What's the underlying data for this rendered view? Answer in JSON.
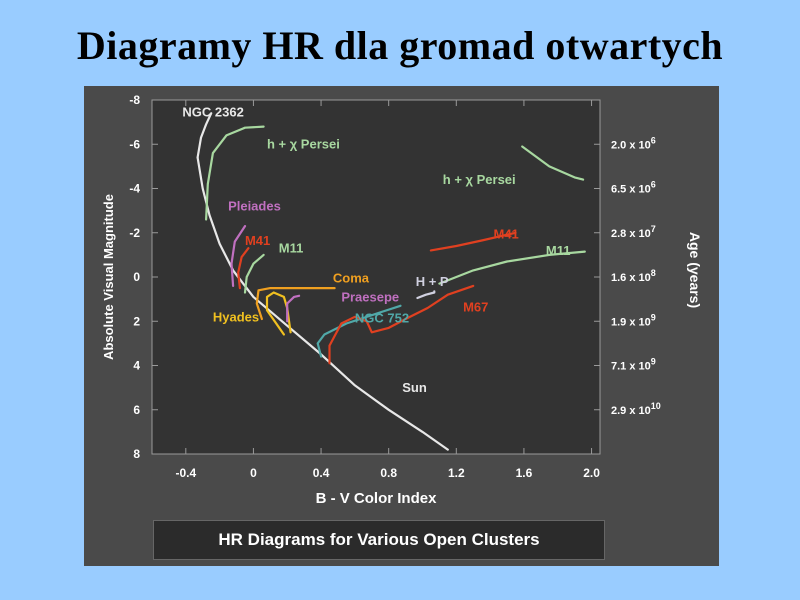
{
  "slide_title": "Diagramy HR dla gromad otwartych",
  "caption": "HR Diagrams for Various Open Clusters",
  "chart_data": {
    "type": "line",
    "title": "HR Diagrams for Various Open Clusters",
    "xlabel": "B - V Color Index",
    "ylabel": "Absolute Visual Magnitude",
    "y2label": "Age (years)",
    "xlim": [
      -0.6,
      2.05
    ],
    "ylim": [
      8,
      -8
    ],
    "x_ticks": [
      "-0.4",
      "0",
      "0.4",
      "0.8",
      "1.2",
      "1.6",
      "2.0"
    ],
    "x_tick_values": [
      -0.4,
      0,
      0.4,
      0.8,
      1.2,
      1.6,
      2.0
    ],
    "y_ticks": [
      "-8",
      "-6",
      "-4",
      "-2",
      "0",
      "2",
      "4",
      "6",
      "8"
    ],
    "y_tick_values": [
      -8,
      -6,
      -4,
      -2,
      0,
      2,
      4,
      6,
      8
    ],
    "age_ticks": [
      {
        "base": "2.0 x 10",
        "exp": "6",
        "mag": -6
      },
      {
        "base": "6.5 x 10",
        "exp": "6",
        "mag": -4
      },
      {
        "base": "2.8 x 10",
        "exp": "7",
        "mag": -2
      },
      {
        "base": "1.6 x 10",
        "exp": "8",
        "mag": 0
      },
      {
        "base": "1.9 x 10",
        "exp": "9",
        "mag": 2
      },
      {
        "base": "7.1 x 10",
        "exp": "9",
        "mag": 4
      },
      {
        "base": "2.9 x 10",
        "exp": "10",
        "mag": 6
      }
    ],
    "colors": {
      "main_sequence": "#e8e8e8",
      "h_chi_persei": "#a8d8a0",
      "pleiades": "#c070c0",
      "m41": "#e04020",
      "m11": "#a8d8a0",
      "coma": "#f0a020",
      "hyades": "#f0c020",
      "praesepe": "#c070c0",
      "ngc752": "#50a8a8",
      "h_p": "#d0d0e0",
      "m67": "#e04020"
    },
    "series": [
      {
        "name": "Sun",
        "key": "main_sequence",
        "points": [
          [
            -0.33,
            -5.4
          ],
          [
            -0.3,
            -4
          ],
          [
            -0.26,
            -2.8
          ],
          [
            -0.2,
            -1.5
          ],
          [
            -0.12,
            -0.3
          ],
          [
            0,
            0.9
          ],
          [
            0.2,
            2.2
          ],
          [
            0.4,
            3.5
          ],
          [
            0.6,
            4.9
          ],
          [
            0.8,
            6.0
          ],
          [
            1.0,
            7.0
          ],
          [
            1.15,
            7.8
          ]
        ]
      },
      {
        "name": "NGC 2362",
        "key": "main_sequence",
        "points": [
          [
            -0.33,
            -5.4
          ],
          [
            -0.31,
            -6.3
          ],
          [
            -0.28,
            -6.9
          ],
          [
            -0.25,
            -7.4
          ]
        ]
      },
      {
        "name": "h + χ Persei",
        "key": "h_chi_persei",
        "points": [
          [
            -0.28,
            -2.6
          ],
          [
            -0.27,
            -4.2
          ],
          [
            -0.24,
            -5.6
          ],
          [
            -0.16,
            -6.4
          ],
          [
            -0.05,
            -6.75
          ],
          [
            0.06,
            -6.8
          ]
        ]
      },
      {
        "name": "h + χ Persei",
        "key": "h_chi_persei",
        "points": [
          [
            1.59,
            -5.9
          ],
          [
            1.75,
            -5.0
          ],
          [
            1.9,
            -4.5
          ],
          [
            1.95,
            -4.4
          ]
        ]
      },
      {
        "name": "Pleiades",
        "key": "pleiades",
        "points": [
          [
            -0.12,
            0.4
          ],
          [
            -0.13,
            -0.6
          ],
          [
            -0.11,
            -1.6
          ],
          [
            -0.05,
            -2.3
          ]
        ]
      },
      {
        "name": "M41",
        "key": "m41",
        "points": [
          [
            -0.08,
            0.5
          ],
          [
            -0.09,
            -0.2
          ],
          [
            -0.07,
            -0.9
          ],
          [
            -0.03,
            -1.3
          ]
        ]
      },
      {
        "name": "M41",
        "key": "m41",
        "points": [
          [
            1.05,
            -1.2
          ],
          [
            1.2,
            -1.4
          ],
          [
            1.35,
            -1.65
          ],
          [
            1.55,
            -2.0
          ]
        ]
      },
      {
        "name": "M11",
        "key": "m11",
        "points": [
          [
            -0.05,
            0.7
          ],
          [
            -0.04,
            0.0
          ],
          [
            0,
            -0.6
          ],
          [
            0.06,
            -1.0
          ]
        ]
      },
      {
        "name": "M11",
        "key": "m11",
        "points": [
          [
            1.1,
            0.3
          ],
          [
            1.3,
            -0.3
          ],
          [
            1.5,
            -0.7
          ],
          [
            1.75,
            -1.0
          ],
          [
            1.96,
            -1.15
          ]
        ]
      },
      {
        "name": "Coma",
        "key": "coma",
        "points": [
          [
            0.05,
            1.9
          ],
          [
            0.02,
            1.2
          ],
          [
            0.03,
            0.6
          ],
          [
            0.1,
            0.5
          ],
          [
            0.25,
            0.5
          ],
          [
            0.48,
            0.5
          ]
        ]
      },
      {
        "name": "Hyades",
        "key": "hyades",
        "points": [
          [
            0.18,
            2.6
          ],
          [
            0.08,
            1.5
          ],
          [
            0.08,
            0.9
          ],
          [
            0.12,
            0.7
          ],
          [
            0.18,
            0.9
          ],
          [
            0.2,
            1.4
          ],
          [
            0.22,
            2.5
          ]
        ]
      },
      {
        "name": "Praesepe",
        "key": "praesepe",
        "points": [
          [
            0.2,
            2.0
          ],
          [
            0.2,
            1.2
          ],
          [
            0.24,
            0.9
          ],
          [
            0.27,
            0.85
          ]
        ]
      },
      {
        "name": "NGC 752",
        "key": "ngc752",
        "points": [
          [
            0.4,
            3.6
          ],
          [
            0.38,
            3.0
          ],
          [
            0.42,
            2.6
          ],
          [
            0.55,
            2.1
          ],
          [
            0.75,
            1.6
          ],
          [
            0.87,
            1.3
          ]
        ]
      },
      {
        "name": "H + P",
        "key": "h_p",
        "points": [
          [
            0.97,
            0.95
          ],
          [
            1.02,
            0.8
          ],
          [
            1.07,
            0.7
          ],
          [
            1.07,
            0.65
          ]
        ]
      },
      {
        "name": "M67",
        "key": "m67",
        "points": [
          [
            0.45,
            3.9
          ],
          [
            0.45,
            3.1
          ],
          [
            0.52,
            2.1
          ],
          [
            0.6,
            1.8
          ],
          [
            0.67,
            2.0
          ],
          [
            0.7,
            2.5
          ],
          [
            0.8,
            2.3
          ],
          [
            0.9,
            1.9
          ],
          [
            1.03,
            1.4
          ],
          [
            1.15,
            0.8
          ],
          [
            1.3,
            0.4
          ]
        ]
      }
    ],
    "labels": [
      {
        "text": "NGC 2362",
        "key": "main_sequence",
        "x": -0.42,
        "y": -7.25
      },
      {
        "text": "h + χ Persei",
        "key": "h_chi_persei",
        "x": 0.08,
        "y": -5.8
      },
      {
        "text": "h + χ Persei",
        "key": "h_chi_persei",
        "x": 1.12,
        "y": -4.2
      },
      {
        "text": "Pleiades",
        "key": "pleiades",
        "x": -0.15,
        "y": -3.0
      },
      {
        "text": "M41",
        "key": "m41",
        "x": -0.05,
        "y": -1.45
      },
      {
        "text": "M11",
        "key": "m11",
        "x": 0.15,
        "y": -1.1
      },
      {
        "text": "M41",
        "key": "m41",
        "x": 1.42,
        "y": -1.75
      },
      {
        "text": "M11",
        "key": "m11",
        "x": 1.73,
        "y": -1.0
      },
      {
        "text": "Coma",
        "key": "coma",
        "x": 0.47,
        "y": 0.25
      },
      {
        "text": "H + P",
        "key": "h_p",
        "x": 0.96,
        "y": 0.4
      },
      {
        "text": "Praesepe",
        "key": "praesepe",
        "x": 0.52,
        "y": 1.1
      },
      {
        "text": "M67",
        "key": "m67",
        "x": 1.24,
        "y": 1.55
      },
      {
        "text": "Hyades",
        "key": "hyades",
        "x": -0.24,
        "y": 2.0
      },
      {
        "text": "NGC 752",
        "key": "ngc752",
        "x": 0.6,
        "y": 2.05
      },
      {
        "text": "Sun",
        "key": "main_sequence",
        "x": 0.88,
        "y": 5.2
      }
    ]
  }
}
